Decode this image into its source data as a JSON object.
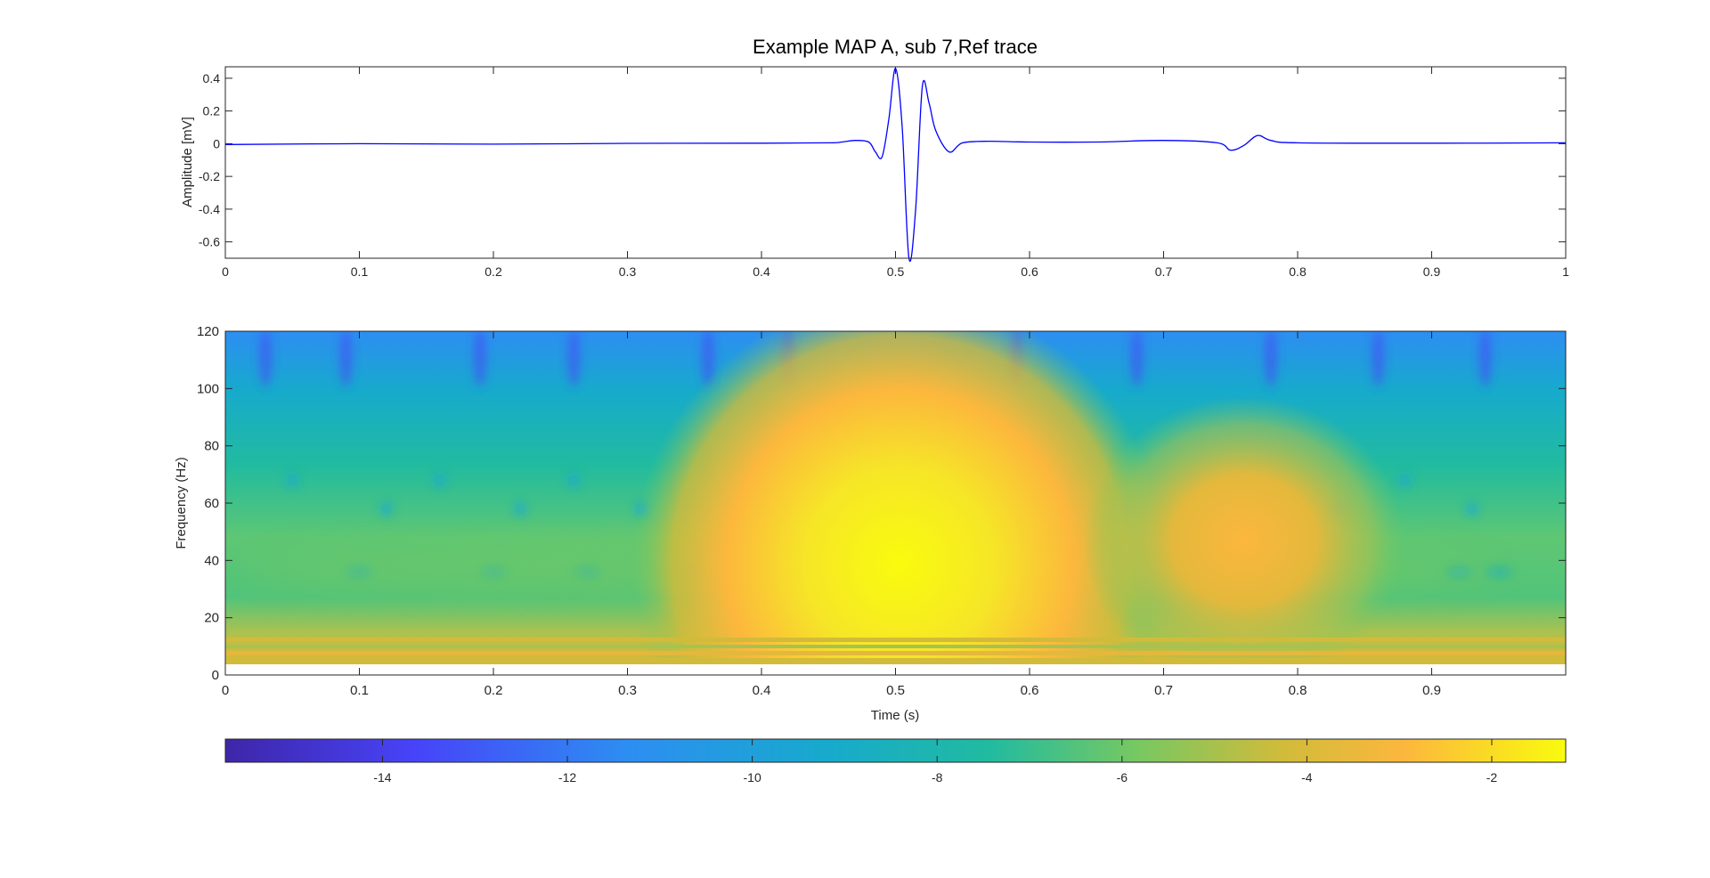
{
  "colors": {
    "trace": "#0000ff",
    "axes": "#262626",
    "background": "#ffffff",
    "colormap": [
      "#3e26a8",
      "#4743f8",
      "#2d8ef2",
      "#17aacc",
      "#21bba0",
      "#77c862",
      "#d2bb3a",
      "#fcb73d",
      "#f9fb0e"
    ]
  },
  "chart_data": [
    {
      "type": "line",
      "title": "Example MAP A, sub 7,Ref trace",
      "xlabel": "",
      "ylabel": "Amplitude [mV]",
      "xlim": [
        0,
        1
      ],
      "ylim": [
        -0.7,
        0.47
      ],
      "xticks": [
        "0",
        "0.1",
        "0.2",
        "0.3",
        "0.4",
        "0.5",
        "0.6",
        "0.7",
        "0.8",
        "0.9",
        "1"
      ],
      "yticks": [
        "0.4",
        "0.2",
        "0",
        "-0.2",
        "-0.4",
        "-0.6"
      ],
      "series": [
        {
          "color": "#0000ff",
          "x": [
            0,
            0.1,
            0.2,
            0.3,
            0.4,
            0.45,
            0.46,
            0.47,
            0.48,
            0.485,
            0.49,
            0.495,
            0.5,
            0.505,
            0.51,
            0.515,
            0.52,
            0.525,
            0.53,
            0.54,
            0.55,
            0.57,
            0.6,
            0.65,
            0.7,
            0.74,
            0.75,
            0.76,
            0.77,
            0.78,
            0.8,
            0.9,
            1.0
          ],
          "values": [
            -0.005,
            0,
            -0.003,
            0.002,
            0.003,
            0.005,
            0.01,
            0.02,
            0.01,
            -0.05,
            -0.08,
            0.15,
            0.46,
            0.1,
            -0.7,
            -0.4,
            0.35,
            0.25,
            0.08,
            -0.05,
            0.005,
            0.015,
            0.01,
            0.01,
            0.02,
            0.005,
            -0.04,
            -0.01,
            0.05,
            0.02,
            0.005,
            0.003,
            0.005
          ]
        }
      ]
    },
    {
      "type": "heatmap",
      "title": "",
      "xlabel": "Time (s)",
      "ylabel": "Frequency (Hz)",
      "xlim": [
        0,
        1
      ],
      "ylim": [
        0,
        120
      ],
      "xticks": [
        "0",
        "0.1",
        "0.2",
        "0.3",
        "0.4",
        "0.5",
        "0.6",
        "0.7",
        "0.8",
        "0.9"
      ],
      "yticks": [
        "120",
        "100",
        "80",
        "60",
        "40",
        "20",
        "0"
      ],
      "colorbar": {
        "clim": [
          -15.7,
          -1.2
        ],
        "ticks": [
          "-14",
          "-12",
          "-10",
          "-8",
          "-6",
          "-4",
          "-2"
        ],
        "position": "bottom"
      },
      "features": [
        {
          "time": 0.503,
          "freq": 42,
          "value": -1.5
        },
        {
          "time": 0.76,
          "freq": 47,
          "value": -4.0
        }
      ],
      "background_value": -9,
      "low_frequency_value": -4.5
    }
  ]
}
